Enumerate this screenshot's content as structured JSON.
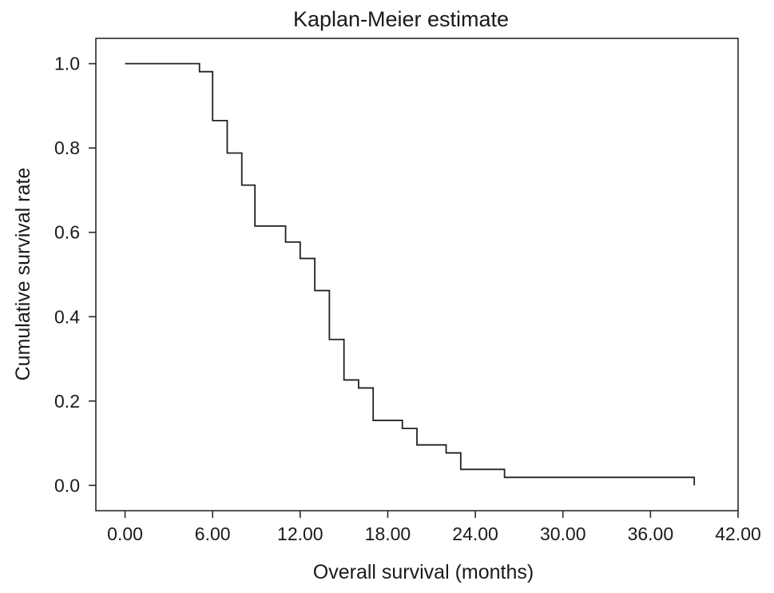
{
  "chart_data": {
    "type": "line",
    "title": "Kaplan-Meier estimate",
    "xlabel": "Overall survival (months)",
    "ylabel": "Cumulative survival rate",
    "xlim": [
      -2,
      42
    ],
    "ylim": [
      -0.06,
      1.06
    ],
    "x_ticks": [
      0,
      6,
      12,
      18,
      24,
      30,
      36,
      42
    ],
    "x_tick_labels": [
      "0.00",
      "6.00",
      "12.00",
      "18.00",
      "24.00",
      "30.00",
      "36.00",
      "42.00"
    ],
    "y_ticks": [
      0.0,
      0.2,
      0.4,
      0.6,
      0.8,
      1.0
    ],
    "y_tick_labels": [
      "0.0",
      "0.2",
      "0.4",
      "0.6",
      "0.8",
      "1.0"
    ],
    "grid": false,
    "legend": "none",
    "series": [
      {
        "style": "step-post",
        "color": "#222222",
        "points": [
          [
            0,
            1.0
          ],
          [
            5.1,
            0.981
          ],
          [
            6.0,
            0.865
          ],
          [
            7.0,
            0.788
          ],
          [
            8.0,
            0.712
          ],
          [
            8.9,
            0.615
          ],
          [
            11.0,
            0.577
          ],
          [
            12.0,
            0.538
          ],
          [
            13.0,
            0.462
          ],
          [
            14.0,
            0.346
          ],
          [
            15.0,
            0.25
          ],
          [
            16.0,
            0.231
          ],
          [
            17.0,
            0.154
          ],
          [
            19.0,
            0.135
          ],
          [
            20.0,
            0.096
          ],
          [
            22.0,
            0.077
          ],
          [
            23.0,
            0.038
          ],
          [
            26.0,
            0.019
          ],
          [
            39.0,
            0.019
          ],
          [
            39.0,
            0.0
          ]
        ]
      }
    ]
  }
}
